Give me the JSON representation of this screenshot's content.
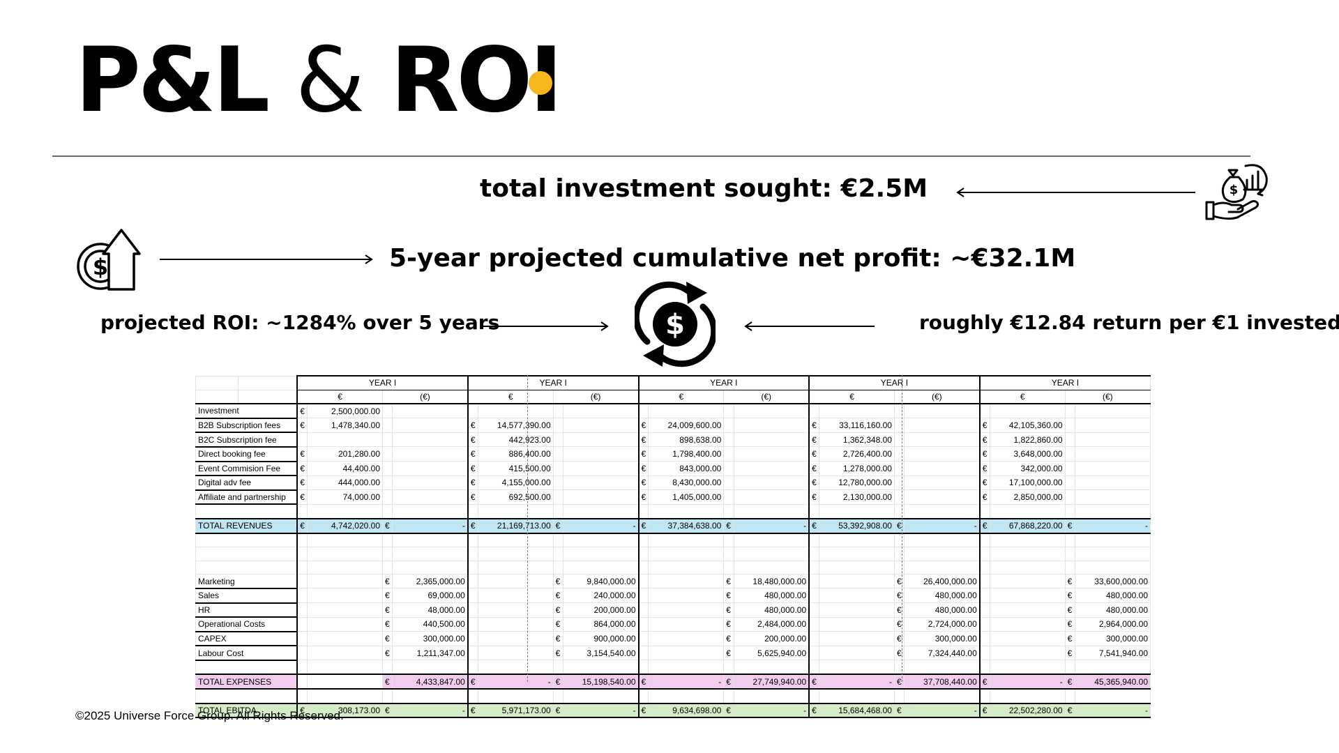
{
  "title": {
    "part1": "P&L",
    "amp": "&",
    "part2": "ROI"
  },
  "accent_color": "#f7b71e",
  "statements": {
    "investment": "total investment sought: €2.5M",
    "net_profit": "5-year projected cumulative net profit: ~€32.1M",
    "roi": "projected ROI: ~1284% over 5 years",
    "return_per_euro": "roughly €12.84 return per €1 invested"
  },
  "icons": {
    "investment": "money-bag-hand-chart-icon",
    "profit": "coin-up-arrow-icon",
    "center": "dollar-cycle-icon"
  },
  "table": {
    "year_label": "YEAR I",
    "col_eur": "€",
    "col_eur_neg": "(€)",
    "cur": "€",
    "dash": "-",
    "revenue_rows": [
      {
        "label": "Investment",
        "values": [
          "2,500,000.00",
          "",
          "",
          "",
          ""
        ]
      },
      {
        "label": "B2B Subscription fees",
        "values": [
          "1,478,340.00",
          "14,577,390.00",
          "24,009,600.00",
          "33,116,160.00",
          "42,105,360.00"
        ]
      },
      {
        "label": "B2C Subscription fee",
        "values": [
          "",
          "442,923.00",
          "898,638.00",
          "1,362,348.00",
          "1,822,860.00"
        ]
      },
      {
        "label": "Direct booking fee",
        "values": [
          "201,280.00",
          "886,400.00",
          "1,798,400.00",
          "2,726,400.00",
          "3,648,000.00"
        ]
      },
      {
        "label": "Event Commision Fee",
        "values": [
          "44,400.00",
          "415,500.00",
          "843,000.00",
          "1,278,000.00",
          "342,000.00"
        ]
      },
      {
        "label": "Digital adv fee",
        "values": [
          "444,000.00",
          "4,155,000.00",
          "8,430,000.00",
          "12,780,000.00",
          "17,100,000.00"
        ]
      },
      {
        "label": "Affiliate and partnership",
        "values": [
          "74,000.00",
          "692,500.00",
          "1,405,000.00",
          "2,130,000.00",
          "2,850,000.00"
        ]
      }
    ],
    "total_revenues": {
      "label": "TOTAL REVENUES",
      "values": [
        "4,742,020.00",
        "21,169,713.00",
        "37,384,638.00",
        "53,392,908.00",
        "67,868,220.00"
      ]
    },
    "expense_rows": [
      {
        "label": "Marketing",
        "values": [
          "2,365,000.00",
          "9,840,000.00",
          "18,480,000.00",
          "26,400,000.00",
          "33,600,000.00"
        ]
      },
      {
        "label": "Sales",
        "values": [
          "69,000.00",
          "240,000.00",
          "480,000.00",
          "480,000.00",
          "480,000.00"
        ]
      },
      {
        "label": "HR",
        "values": [
          "48,000.00",
          "200,000.00",
          "480,000.00",
          "480,000.00",
          "480,000.00"
        ]
      },
      {
        "label": "Operational Costs",
        "values": [
          "440,500.00",
          "864,000.00",
          "2,484,000.00",
          "2,724,000.00",
          "2,964,000.00"
        ]
      },
      {
        "label": "CAPEX",
        "values": [
          "300,000.00",
          "900,000.00",
          "200,000.00",
          "300,000.00",
          "300,000.00"
        ]
      },
      {
        "label": " Labour Cost",
        "values": [
          "1,211,347.00",
          "3,154,540.00",
          "5,625,940.00",
          "7,324,440.00",
          "7,541,940.00"
        ]
      }
    ],
    "total_expenses": {
      "label": "TOTAL EXPENSES",
      "values": [
        "4,433,847.00",
        "15,198,540.00",
        "27,749,940.00",
        "37,708,440.00",
        "45,365,940.00"
      ]
    },
    "total_ebitda": {
      "label": "TOTAL EBITDA",
      "values": [
        "308,173.00",
        "5,971,173.00",
        "9,634,698.00",
        "15,684,468.00",
        "22,502,280.00"
      ]
    }
  },
  "footer": "©2025 Universe Force Group. All Rights Reserved."
}
